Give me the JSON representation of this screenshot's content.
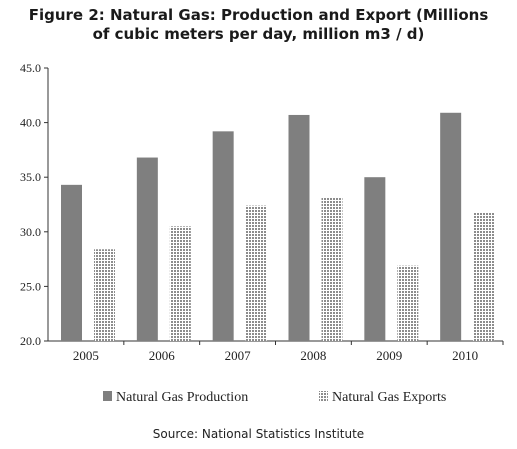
{
  "title": {
    "line1": "Figure  2: Natural Gas: Production and Export (Millions",
    "line2": "of cubic meters per day, million m3 / d)"
  },
  "source": "Source: National Statistics Institute",
  "colors": {
    "production": "#7f7f7f",
    "exports_pattern": "#8c8c8c",
    "axis": "#333333"
  },
  "chart_data": {
    "type": "bar",
    "title": "Figure  2: Natural Gas: Production and Export (Millions of cubic meters per day, million m3 / d)",
    "categories": [
      "2005",
      "2006",
      "2007",
      "2008",
      "2009",
      "2010"
    ],
    "series": [
      {
        "name": "Natural Gas Production",
        "values": [
          34.3,
          36.8,
          39.2,
          40.7,
          35.0,
          40.9
        ]
      },
      {
        "name": "Natural Gas Exports",
        "values": [
          28.4,
          30.5,
          32.4,
          33.1,
          26.9,
          31.8
        ]
      }
    ],
    "ylim": [
      20,
      45
    ],
    "yticks": [
      "20.0",
      "25.0",
      "30.0",
      "35.0",
      "40.0",
      "45.0"
    ],
    "xlabel": "",
    "ylabel": "",
    "grid": false,
    "legend_position": "bottom"
  }
}
